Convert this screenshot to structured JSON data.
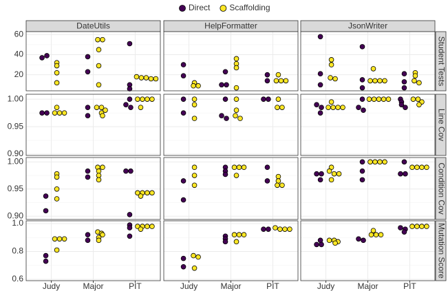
{
  "chart_data": {
    "type": "faceted-dotplot",
    "categories": [
      "Judy",
      "Major",
      "PIT"
    ],
    "facet_columns": [
      "DateUtils",
      "HelpFormatter",
      "JsonWriter"
    ],
    "facet_rows": [
      {
        "name": "Student Tests",
        "ylim": [
          4,
          63
        ],
        "yticks": [
          20,
          40,
          60
        ]
      },
      {
        "name": "Line Cov",
        "ylim": [
          0.8975,
          1.009
        ],
        "yticks": [
          {
            "value": 0.9,
            "label": "0.90"
          },
          0.95,
          {
            "value": 1,
            "label": "1.00"
          }
        ]
      },
      {
        "name": "Condition Cov",
        "ylim": [
          0.894,
          1.008
        ],
        "yticks": [
          {
            "value": 0.9,
            "label": "0.90"
          },
          0.95,
          {
            "value": 1,
            "label": "1.00"
          }
        ]
      },
      {
        "name": "Mutation Score",
        "ylim": [
          0.59,
          1.02
        ],
        "yticks": [
          0.6,
          0.8,
          {
            "value": 1,
            "label": "1.0"
          }
        ]
      }
    ],
    "grid": true,
    "legend": "top",
    "series": [
      {
        "name": "Direct",
        "color": "#440154",
        "values": [
          [
            [
              [
                37,
                39
              ],
              [
                38,
                23
              ],
              [
                51,
                10,
                6
              ]
            ],
            [
              [
                30,
                19
              ],
              [
                23,
                10,
                10
              ],
              [
                20,
                14
              ]
            ],
            [
              [
                58,
                21,
                10
              ],
              [
                48,
                15,
                7
              ],
              [
                21,
                13,
                7
              ]
            ]
          ],
          [
            [
              [
                0.975,
                0.975
              ],
              [
                0.985,
                0.97
              ],
              [
                1.0,
                0.99,
                0.985
              ]
            ],
            [
              [
                1.0,
                0.975
              ],
              [
                1.0,
                0.97,
                0.965
              ],
              [
                1.0,
                1.0
              ]
            ],
            [
              [
                0.99,
                0.985,
                0.975
              ],
              [
                1.0,
                0.985,
                0.98
              ],
              [
                1.0,
                0.995,
                0.99,
                0.985
              ]
            ]
          ],
          [
            [
              [
                0.937,
                0.91
              ],
              [
                0.983,
                0.972
              ],
              [
                0.983,
                0.983,
                0.903
              ]
            ],
            [
              [
                0.965,
                0.93
              ],
              [
                0.99,
                0.983,
                0.977
              ],
              [
                0.99,
                0.965
              ]
            ],
            [
              [
                0.978,
                0.978,
                0.967
              ],
              [
                1.0,
                0.983,
                0.967
              ],
              [
                1.0,
                0.978,
                0.978
              ]
            ]
          ],
          [
            [
              [
                0.77,
                0.73
              ],
              [
                0.92,
                0.88
              ],
              [
                0.99,
                0.97,
                0.91
              ]
            ],
            [
              [
                0.75,
                0.69
              ],
              [
                0.91,
                0.89,
                0.87
              ],
              [
                0.96,
                0.96
              ]
            ],
            [
              [
                0.88,
                0.85,
                0.85
              ],
              [
                0.89,
                0.88
              ],
              [
                0.97,
                0.96,
                0.94
              ]
            ]
          ]
        ]
      },
      {
        "name": "Scaffolding",
        "color": "#fde725",
        "values": [
          [
            [
              [
                32,
                29,
                22,
                12
              ],
              [
                55,
                55,
                45,
                29,
                10
              ],
              [
                18,
                17,
                17,
                16,
                16
              ]
            ],
            [
              [
                12,
                9,
                9
              ],
              [
                36,
                31,
                27,
                7
              ],
              [
                20,
                14,
                14,
                14
              ]
            ],
            [
              [
                35,
                30,
                17,
                16
              ],
              [
                26,
                14,
                14,
                14,
                14
              ],
              [
                22,
                19,
                14,
                12
              ]
            ]
          ],
          [
            [
              [
                0.985,
                0.975,
                0.975,
                0.975
              ],
              [
                0.985,
                0.985,
                0.98,
                0.975,
                0.97
              ],
              [
                1.0,
                1.0,
                1.0,
                1.0,
                0.985
              ]
            ],
            [
              [
                1.0,
                0.99,
                0.965
              ],
              [
                1.0,
                0.98,
                0.97,
                0.965
              ],
              [
                1.0,
                0.985,
                0.985
              ]
            ],
            [
              [
                0.995,
                0.985,
                0.985,
                0.985,
                0.985
              ],
              [
                1.0,
                1.0,
                1.0,
                1.0,
                1.0
              ],
              [
                1.0,
                1.0,
                0.995,
                0.99
              ]
            ]
          ],
          [
            [
              [
                0.978,
                0.972,
                0.95,
                0.932
              ],
              [
                0.99,
                0.99,
                0.983,
                0.975,
                0.967
              ],
              [
                0.943,
                0.943,
                0.943,
                0.943,
                0.937
              ]
            ],
            [
              [
                0.99,
                0.975,
                0.957
              ],
              [
                0.99,
                0.99,
                0.99,
                0.975
              ],
              [
                0.973,
                0.965,
                0.957,
                0.957
              ]
            ],
            [
              [
                0.99,
                0.983,
                0.978,
                0.978,
                0.967
              ],
              [
                1.0,
                1.0,
                1.0,
                1.0
              ],
              [
                0.99,
                0.99,
                0.99,
                0.99
              ]
            ]
          ],
          [
            [
              [
                0.89,
                0.89,
                0.89,
                0.81
              ],
              [
                0.94,
                0.93,
                0.92,
                0.9,
                0.88
              ],
              [
                0.98,
                0.98,
                0.98,
                0.98,
                0.96
              ]
            ],
            [
              [
                0.77,
                0.76,
                0.68
              ],
              [
                0.92,
                0.92,
                0.92,
                0.87
              ],
              [
                0.97,
                0.96,
                0.96,
                0.96
              ]
            ],
            [
              [
                0.88,
                0.88,
                0.87,
                0.86
              ],
              [
                0.95,
                0.92,
                0.92,
                0.92
              ],
              [
                0.98,
                0.98,
                0.98,
                0.98
              ]
            ]
          ]
        ]
      }
    ]
  }
}
